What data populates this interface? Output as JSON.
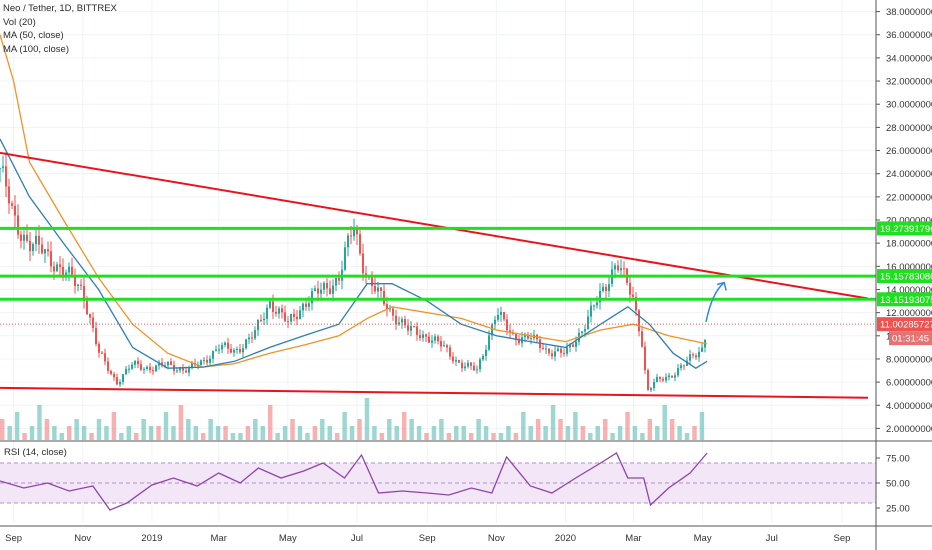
{
  "legend": {
    "symbol": "Neo / Tether, 1D, BITTREX",
    "vol": "Vol (20)",
    "ma50": "MA (50, close)",
    "ma100": "MA (100, close)"
  },
  "rsi_label": "RSI (14, close)",
  "colors": {
    "up": "#26a69a",
    "down": "#ef5350",
    "trend": "#e8141b",
    "level": "#1fe01f",
    "ma50": "#2f7fb4",
    "ma100": "#f39224",
    "rsi": "#8e44ad",
    "rsi_band": "#f2e6f7",
    "price_tag": "#ef5350",
    "arrow": "#2e86de"
  },
  "chart_data": {
    "type": "candlestick",
    "x_ticks": [
      "Sep",
      "Nov",
      "2019",
      "Mar",
      "May",
      "Jul",
      "Sep",
      "Nov",
      "2020",
      "Mar",
      "May",
      "Jul",
      "Sep"
    ],
    "price_ticks": [
      "38.00000000",
      "36.00000000",
      "34.00000000",
      "32.00000000",
      "30.00000000",
      "28.00000000",
      "26.00000000",
      "24.00000000",
      "22.00000000",
      "20.00000000",
      "18.00000000",
      "16.00000000",
      "14.00000000",
      "12.00000000",
      "10.00000000",
      "8.00000000",
      "6.00000000",
      "4.00000000",
      "2.00000000"
    ],
    "price_range": [
      1,
      39
    ],
    "rsi_ticks": [
      "75.00",
      "50.00",
      "25.00"
    ],
    "rsi_range": [
      10,
      90
    ],
    "current_price": "11.00285727",
    "countdown": "01:31:45",
    "horizontal_levels": [
      {
        "label": "19.27391796",
        "value": 19.27391796
      },
      {
        "label": "15.15783080",
        "value": 15.1578308
      },
      {
        "label": "13.15193075",
        "value": 13.15193075
      }
    ],
    "trendlines": [
      {
        "name": "upper",
        "points": [
          [
            "2018-08-20",
            25.8
          ],
          [
            "2020-09-25",
            13.2
          ]
        ]
      },
      {
        "name": "lower",
        "points": [
          [
            "2018-08-20",
            5.5
          ],
          [
            "2020-09-25",
            4.65
          ]
        ]
      }
    ],
    "projection_arrow": [
      [
        "2020-05-04",
        11.2
      ],
      [
        "2020-05-20",
        14.6
      ]
    ],
    "price_series": {
      "name": "Neo / Tether",
      "x": [
        "2018-08-20",
        "2018-09-01",
        "2018-09-15",
        "2018-10-01",
        "2018-10-15",
        "2018-11-01",
        "2018-11-15",
        "2018-12-01",
        "2018-12-15",
        "2019-01-01",
        "2019-01-15",
        "2019-02-01",
        "2019-02-15",
        "2019-03-01",
        "2019-03-15",
        "2019-04-01",
        "2019-04-15",
        "2019-05-01",
        "2019-05-15",
        "2019-06-01",
        "2019-06-15",
        "2019-06-28",
        "2019-07-10",
        "2019-07-20",
        "2019-08-01",
        "2019-08-15",
        "2019-09-01",
        "2019-09-15",
        "2019-10-01",
        "2019-10-15",
        "2019-11-01",
        "2019-11-15",
        "2019-12-01",
        "2019-12-15",
        "2020-01-01",
        "2020-01-15",
        "2020-02-01",
        "2020-02-15",
        "2020-03-01",
        "2020-03-08",
        "2020-03-13",
        "2020-03-20",
        "2020-04-01",
        "2020-04-15",
        "2020-05-01",
        "2020-05-05"
      ],
      "y": [
        24.5,
        20,
        18,
        17,
        15.5,
        14,
        8.5,
        6,
        7.5,
        7.2,
        7.5,
        7,
        7.8,
        9,
        8.7,
        10,
        13,
        11,
        12.8,
        14,
        15,
        19.5,
        15,
        13.5,
        12,
        10.5,
        10,
        9,
        7.5,
        7,
        12,
        10,
        9.8,
        8.8,
        8.4,
        10.5,
        13.5,
        16.5,
        13,
        10,
        5.2,
        6,
        6.5,
        7.5,
        9,
        11
      ]
    },
    "ma50": {
      "name": "MA (50, close)",
      "x": [
        "2018-08-20",
        "2018-09-15",
        "2018-10-15",
        "2018-11-15",
        "2018-12-15",
        "2019-01-15",
        "2019-02-15",
        "2019-03-15",
        "2019-04-15",
        "2019-05-15",
        "2019-06-15",
        "2019-07-10",
        "2019-08-01",
        "2019-09-01",
        "2019-10-01",
        "2019-11-01",
        "2019-12-01",
        "2020-01-01",
        "2020-02-01",
        "2020-02-25",
        "2020-03-15",
        "2020-04-05",
        "2020-04-25",
        "2020-05-05"
      ],
      "y": [
        27,
        22,
        18,
        14,
        9,
        7.2,
        7.3,
        7.8,
        9,
        10,
        11,
        14.5,
        14.5,
        13,
        11,
        10,
        9.5,
        9,
        11,
        12.5,
        11,
        8.5,
        7.2,
        7.8
      ]
    },
    "ma100": {
      "name": "MA (100, close)",
      "x": [
        "2018-08-20",
        "2018-09-01",
        "2018-09-15",
        "2018-10-15",
        "2018-11-15",
        "2018-12-15",
        "2019-01-15",
        "2019-02-15",
        "2019-03-15",
        "2019-04-15",
        "2019-05-15",
        "2019-06-15",
        "2019-07-10",
        "2019-08-01",
        "2019-09-01",
        "2019-10-01",
        "2019-11-01",
        "2019-12-01",
        "2020-01-01",
        "2020-02-01",
        "2020-03-01",
        "2020-04-01",
        "2020-05-05"
      ],
      "y": [
        36,
        32,
        25,
        20,
        15,
        11,
        8.5,
        7.3,
        7.6,
        8.5,
        9.2,
        10,
        11.5,
        12.5,
        12,
        11.5,
        10.5,
        10,
        9.5,
        10.5,
        11,
        10,
        9.3
      ]
    },
    "volume": {
      "name": "Vol (20)",
      "values": [
        3,
        2,
        4,
        1,
        2,
        5,
        3,
        2,
        1,
        2,
        3,
        2,
        1,
        3,
        2,
        4,
        1,
        2,
        1,
        3,
        2,
        2,
        4,
        2,
        5,
        3,
        2,
        1,
        3,
        2,
        2,
        1,
        1,
        2,
        3,
        2,
        5,
        1,
        2,
        3,
        2,
        1,
        2,
        3,
        2,
        1,
        4,
        2,
        3,
        6,
        2,
        1,
        3,
        2,
        4,
        3,
        2,
        1,
        2,
        3,
        1,
        2,
        2,
        1,
        3,
        2,
        1,
        1,
        2,
        1,
        4,
        2,
        3,
        2,
        5,
        3,
        2,
        4,
        2,
        1,
        2,
        3,
        1,
        2,
        4,
        2,
        1,
        3,
        2,
        5,
        3,
        2,
        1,
        2,
        4
      ]
    },
    "rsi": {
      "name": "RSI (14, close)",
      "x": [
        "2018-08-20",
        "2018-09-10",
        "2018-10-01",
        "2018-10-20",
        "2018-11-10",
        "2018-11-25",
        "2018-12-10",
        "2019-01-01",
        "2019-01-20",
        "2019-02-10",
        "2019-03-01",
        "2019-03-20",
        "2019-04-05",
        "2019-04-25",
        "2019-05-15",
        "2019-06-01",
        "2019-06-20",
        "2019-07-05",
        "2019-07-20",
        "2019-08-10",
        "2019-09-01",
        "2019-09-20",
        "2019-10-10",
        "2019-10-28",
        "2019-11-10",
        "2019-12-01",
        "2019-12-20",
        "2020-01-10",
        "2020-02-01",
        "2020-02-15",
        "2020-02-25",
        "2020-03-10",
        "2020-03-16",
        "2020-04-01",
        "2020-04-20",
        "2020-05-05"
      ],
      "y": [
        52,
        45,
        50,
        42,
        47,
        23,
        30,
        48,
        55,
        47,
        60,
        50,
        65,
        55,
        62,
        70,
        55,
        78,
        40,
        42,
        40,
        38,
        45,
        40,
        76,
        47,
        40,
        55,
        70,
        80,
        55,
        55,
        28,
        45,
        60,
        80
      ]
    }
  }
}
